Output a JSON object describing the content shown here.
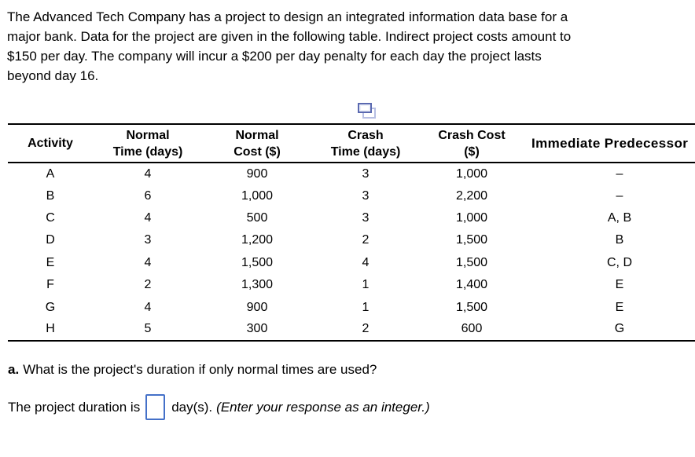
{
  "colors": {
    "text": "#000000",
    "rule": "#000000",
    "input_border": "#4470c8",
    "icon_front": "#5a69b0",
    "icon_back": "#b7bfe3"
  },
  "problem": {
    "lines": [
      "The Advanced Tech Company has a project to design an integrated information data base for a",
      "major bank. Data for the project are given in the following table. Indirect project costs amount to",
      "$150 per day. The company will incur a $200 per day penalty for each day the project lasts",
      "beyond day 16."
    ]
  },
  "table": {
    "headers": [
      {
        "line1": "Activity",
        "line2": ""
      },
      {
        "line1": "Normal",
        "line2": "Time (days)"
      },
      {
        "line1": "Normal",
        "line2": "Cost ($)"
      },
      {
        "line1": "Crash",
        "line2": "Time (days)"
      },
      {
        "line1": "Crash Cost",
        "line2": "($)"
      },
      {
        "line1": "Immediate Predecessor",
        "line2": ""
      }
    ],
    "rows": [
      {
        "activity": "A",
        "normal_time": "4",
        "normal_cost": "900",
        "crash_time": "3",
        "crash_cost": "1,000",
        "predecessors": "–"
      },
      {
        "activity": "B",
        "normal_time": "6",
        "normal_cost": "1,000",
        "crash_time": "3",
        "crash_cost": "2,200",
        "predecessors": "–"
      },
      {
        "activity": "C",
        "normal_time": "4",
        "normal_cost": "500",
        "crash_time": "3",
        "crash_cost": "1,000",
        "predecessors": "A, B"
      },
      {
        "activity": "D",
        "normal_time": "3",
        "normal_cost": "1,200",
        "crash_time": "2",
        "crash_cost": "1,500",
        "predecessors": "B"
      },
      {
        "activity": "E",
        "normal_time": "4",
        "normal_cost": "1,500",
        "crash_time": "4",
        "crash_cost": "1,500",
        "predecessors": "C, D"
      },
      {
        "activity": "F",
        "normal_time": "2",
        "normal_cost": "1,300",
        "crash_time": "1",
        "crash_cost": "1,400",
        "predecessors": "E"
      },
      {
        "activity": "G",
        "normal_time": "4",
        "normal_cost": "900",
        "crash_time": "1",
        "crash_cost": "1,500",
        "predecessors": "E"
      },
      {
        "activity": "H",
        "normal_time": "5",
        "normal_cost": "300",
        "crash_time": "2",
        "crash_cost": "600",
        "predecessors": "G"
      }
    ]
  },
  "question": {
    "label": "a.",
    "text": "What is the project's duration if only normal times are used?"
  },
  "answer": {
    "prefix": "The project duration is",
    "suffix": "day(s).",
    "note": "(Enter your response as an integer.)",
    "input_value": "",
    "input_placeholder": ""
  }
}
